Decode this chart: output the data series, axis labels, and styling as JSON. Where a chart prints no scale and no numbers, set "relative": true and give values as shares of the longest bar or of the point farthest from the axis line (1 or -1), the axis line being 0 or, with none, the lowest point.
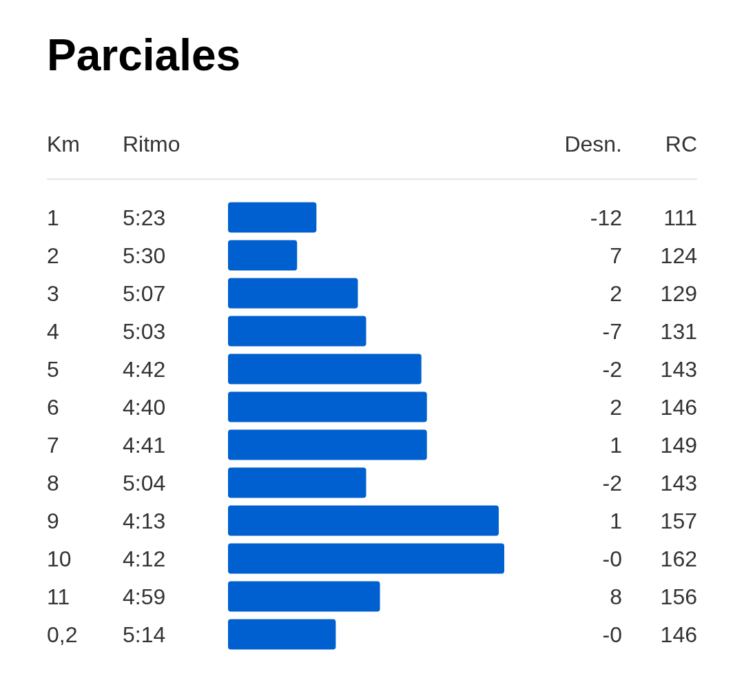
{
  "chart_data": {
    "type": "bar",
    "orientation": "horizontal",
    "relative": true,
    "title": "Parciales",
    "ylabel": "Km",
    "categories": [
      "1",
      "2",
      "3",
      "4",
      "5",
      "6",
      "7",
      "8",
      "9",
      "10",
      "11",
      "0,2"
    ],
    "series": [
      {
        "color": "#0060d0",
        "values": [
          0.32,
          0.25,
          0.47,
          0.5,
          0.7,
          0.72,
          0.72,
          0.5,
          0.98,
          1,
          0.55,
          0.39
        ]
      }
    ],
    "annotations": [
      "Ritmo",
      "Desn.",
      "RC",
      "5:23",
      "-12",
      "111",
      "5:30",
      "7",
      "124",
      "5:07",
      "2",
      "129",
      "5:03",
      "-7",
      "131",
      "4:42",
      "-2",
      "143",
      "4:40",
      "2",
      "146",
      "4:41",
      "1",
      "149",
      "5:04",
      "-2",
      "143",
      "4:13",
      "1",
      "157",
      "4:12",
      "-0",
      "162",
      "4:59",
      "8",
      "156",
      "5:14",
      "-0",
      "146"
    ]
  }
}
